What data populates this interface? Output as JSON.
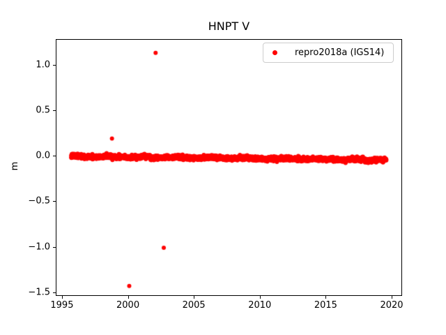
{
  "chart_data": {
    "type": "scatter",
    "title": "HNPT V",
    "xlabel": "",
    "ylabel": "m",
    "xlim": [
      1994.58,
      2020.74
    ],
    "ylim": [
      -1.531,
      1.274
    ],
    "grid": false,
    "background": "#ffffff",
    "axis_color": "#000000",
    "xticks": [
      {
        "value": 1995,
        "label": "1995"
      },
      {
        "value": 2000,
        "label": "2000"
      },
      {
        "value": 2005,
        "label": "2005"
      },
      {
        "value": 2010,
        "label": "2010"
      },
      {
        "value": 2015,
        "label": "2015"
      },
      {
        "value": 2020,
        "label": "2020"
      }
    ],
    "yticks": [
      {
        "value": 1.0,
        "label": "1.0"
      },
      {
        "value": 0.5,
        "label": "0.5"
      },
      {
        "value": 0.0,
        "label": "0.0"
      },
      {
        "value": -0.5,
        "label": "−0.5"
      },
      {
        "value": -1.0,
        "label": "−1.0"
      },
      {
        "value": -1.5,
        "label": "−1.5"
      }
    ],
    "legend": {
      "position": "upper right",
      "label": "repro2018a (IGS14)",
      "marker": "dot",
      "marker_color": "#ff0000"
    },
    "series": [
      {
        "name": "repro2018a (IGS14)",
        "color": "#ff0000",
        "marker": "dot",
        "marker_radius_px": 3,
        "band": {
          "x_start": 1995.7,
          "x_end": 2019.6,
          "n_points": 3000,
          "mean_start": -0.005,
          "mean_end": -0.045,
          "noise_sigma": 0.011,
          "wiggle_amp": 0.004,
          "wiggle_cycles": 9,
          "seed": 20180
        },
        "outliers": [
          {
            "x": 1998.79,
            "y": 0.19
          },
          {
            "x": 2000.1,
            "y": -1.43
          },
          {
            "x": 2002.1,
            "y": 1.13
          },
          {
            "x": 2002.72,
            "y": -1.01
          }
        ]
      }
    ]
  }
}
